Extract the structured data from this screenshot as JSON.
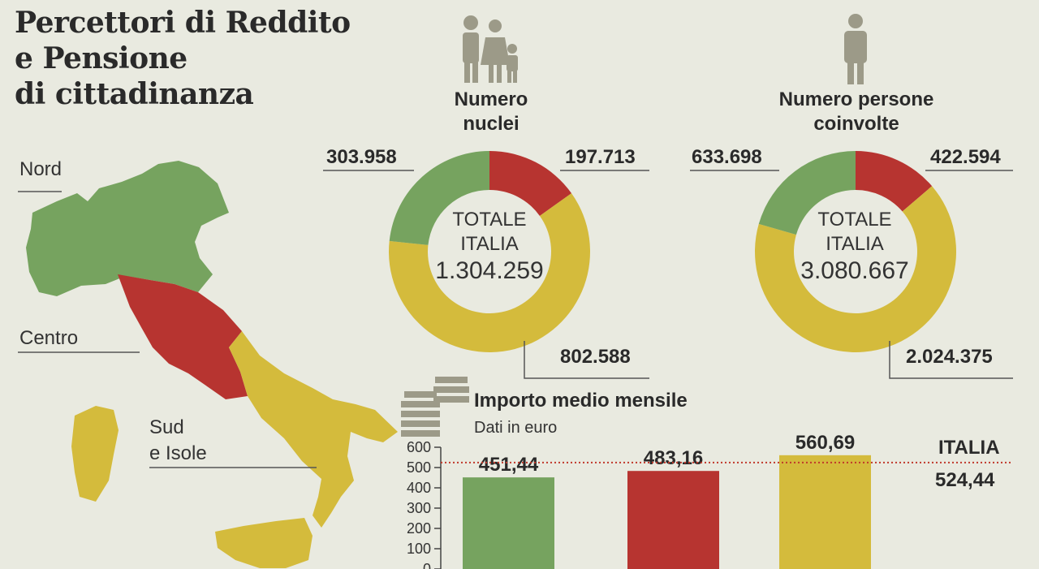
{
  "title_lines": [
    "Percettori di Reddito",
    "e Pensione",
    "di cittadinanza"
  ],
  "regions": {
    "nord": "Nord",
    "centro": "Centro",
    "sud_line1": "Sud",
    "sud_line2": "e Isole"
  },
  "colors": {
    "nord": "#76a35f",
    "centro": "#b73430",
    "sud": "#d4bb3c",
    "line": "#c0392b"
  },
  "donut_nuclei": {
    "heading_line1": "Numero",
    "heading_line2": "nuclei",
    "center_line1": "TOTALE",
    "center_line2": "ITALIA",
    "total": "1.304.259",
    "nord_label": "303.958",
    "centro_label": "197.713",
    "sud_label": "802.588"
  },
  "donut_persone": {
    "heading_line1": "Numero persone",
    "heading_line2": "coinvolte",
    "center_line1": "TOTALE",
    "center_line2": "ITALIA",
    "total": "3.080.667",
    "nord_label": "633.698",
    "centro_label": "422.594",
    "sud_label": "2.024.375"
  },
  "bar_chart": {
    "title": "Importo medio mensile",
    "subtitle": "Dati in euro",
    "italia_label": "ITALIA",
    "italia_value_label": "524,44"
  },
  "chart_data": [
    {
      "type": "pie",
      "title": "Numero nuclei",
      "categories": [
        "Nord",
        "Centro",
        "Sud e Isole"
      ],
      "values": [
        303958,
        197713,
        802588
      ],
      "total": 1304259
    },
    {
      "type": "pie",
      "title": "Numero persone coinvolte",
      "categories": [
        "Nord",
        "Centro",
        "Sud e Isole"
      ],
      "values": [
        633698,
        422594,
        2024375
      ],
      "total": 3080667
    },
    {
      "type": "bar",
      "title": "Importo medio mensile",
      "subtitle": "Dati in euro",
      "categories": [
        "Nord",
        "Centro",
        "Sud e Isole"
      ],
      "values": [
        451.44,
        483.16,
        560.69
      ],
      "value_labels": [
        "451,44",
        "483,16",
        "560,69"
      ],
      "reference_line": {
        "label": "ITALIA",
        "value": 524.44
      },
      "yticks": [
        0,
        100,
        200,
        300,
        400,
        500,
        600
      ],
      "ylim": [
        0,
        600
      ]
    }
  ]
}
